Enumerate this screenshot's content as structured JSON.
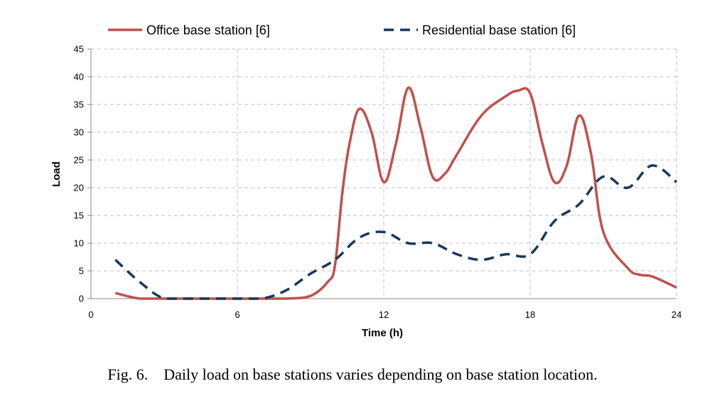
{
  "caption": {
    "label": "Fig. 6.",
    "text": "Daily load on base stations varies depending on base station location."
  },
  "colors": {
    "office": "#c0504d",
    "residential": "#17375e",
    "grid": "#bfbfbf"
  },
  "chart_data": {
    "type": "line",
    "xlabel": "Time (h)",
    "ylabel": "Load",
    "xlim": [
      0,
      24
    ],
    "ylim": [
      0,
      45
    ],
    "xticks": [
      0,
      6,
      12,
      18,
      24
    ],
    "yticks": [
      0,
      5,
      10,
      15,
      20,
      25,
      30,
      35,
      40,
      45
    ],
    "grid": true,
    "legend_position": "top",
    "series": [
      {
        "name": "Office base station [6]",
        "style": "solid",
        "x": [
          1,
          2,
          3,
          4,
          5,
          6,
          7,
          8,
          9,
          9.7,
          10,
          10.3,
          10.6,
          11,
          11.5,
          12,
          12.5,
          13,
          13.5,
          14,
          14.5,
          15,
          16,
          17,
          17.5,
          18,
          18.5,
          19,
          19.5,
          20,
          20.5,
          21,
          22,
          22.5,
          23,
          24
        ],
        "y": [
          1,
          0,
          0,
          0,
          0,
          0,
          0,
          0,
          0.5,
          3,
          6,
          19,
          28,
          34.2,
          30,
          21,
          28,
          38,
          31,
          22,
          22.5,
          26,
          33,
          36.5,
          37.5,
          37,
          28,
          21,
          24,
          33,
          26,
          12,
          5.5,
          4.3,
          4,
          2
        ]
      },
      {
        "name": "Residential base station [6]",
        "style": "dashed",
        "x": [
          1,
          2,
          3,
          4,
          5,
          6,
          7,
          8,
          9,
          10,
          11,
          12,
          13,
          14,
          15,
          16,
          17,
          18,
          19,
          20,
          21,
          22,
          23,
          24
        ],
        "y": [
          7,
          3,
          0,
          0,
          0,
          0,
          0,
          1.5,
          4.5,
          7,
          11,
          12,
          10,
          10,
          8,
          7,
          8,
          8,
          14,
          17,
          22,
          20,
          24,
          21
        ]
      }
    ]
  }
}
